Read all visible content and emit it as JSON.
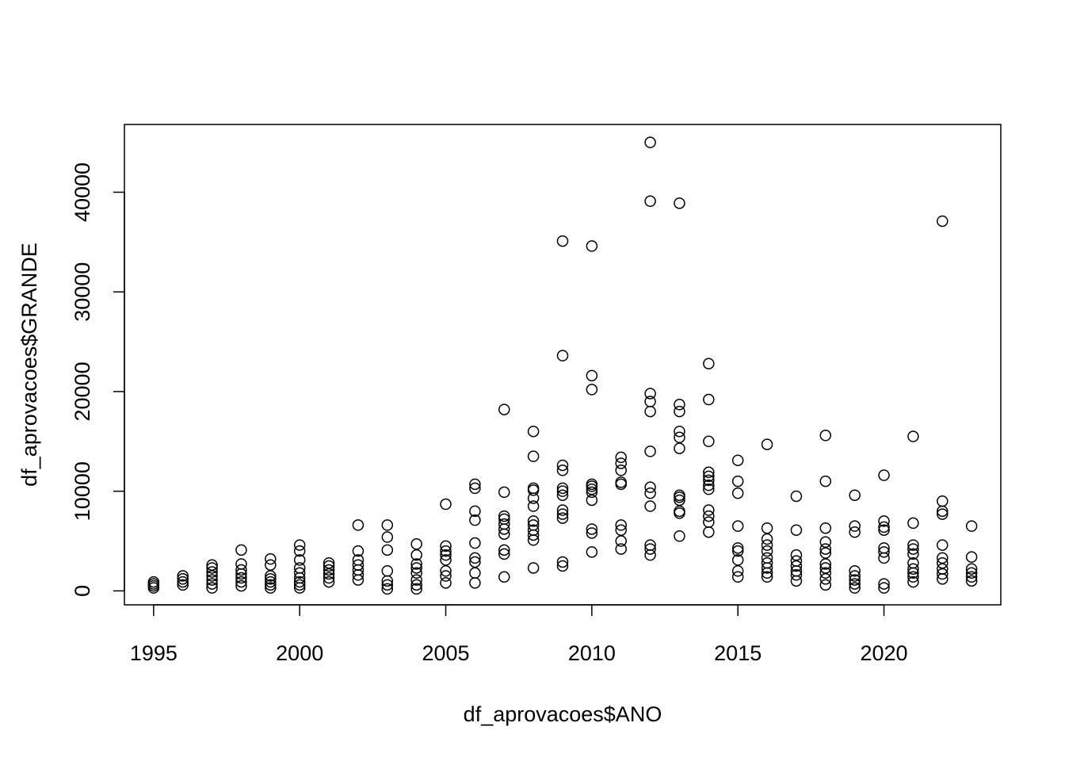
{
  "chart_data": {
    "type": "scatter",
    "title": "",
    "xlabel": "df_aprovacoes$ANO",
    "ylabel": "df_aprovacoes$GRANDE",
    "xlim": [
      1994,
      2024
    ],
    "ylim": [
      -1400,
      46800
    ],
    "x_ticks": [
      1995,
      2000,
      2005,
      2010,
      2015,
      2020
    ],
    "y_ticks": [
      0,
      10000,
      20000,
      30000,
      40000
    ],
    "x_tick_labels": [
      "1995",
      "2000",
      "2005",
      "2010",
      "2015",
      "2020"
    ],
    "y_tick_labels": [
      "0",
      "10000",
      "20000",
      "30000",
      "40000"
    ],
    "grid": false,
    "legend": "none",
    "marker": "open-circle",
    "colors": {
      "point_stroke": "#000000",
      "frame": "#000000",
      "background": "#ffffff"
    },
    "points": [
      [
        1995,
        300
      ],
      [
        1995,
        500
      ],
      [
        1995,
        700
      ],
      [
        1995,
        900
      ],
      [
        1996,
        600
      ],
      [
        1996,
        900
      ],
      [
        1996,
        1200
      ],
      [
        1996,
        1500
      ],
      [
        1997,
        300
      ],
      [
        1997,
        700
      ],
      [
        1997,
        1100
      ],
      [
        1997,
        1500
      ],
      [
        1997,
        1900
      ],
      [
        1997,
        2300
      ],
      [
        1997,
        2600
      ],
      [
        1998,
        500
      ],
      [
        1998,
        900
      ],
      [
        1998,
        1300
      ],
      [
        1998,
        1700
      ],
      [
        1998,
        2100
      ],
      [
        1998,
        2700
      ],
      [
        1998,
        4100
      ],
      [
        1999,
        300
      ],
      [
        1999,
        600
      ],
      [
        1999,
        900
      ],
      [
        1999,
        1200
      ],
      [
        1999,
        1500
      ],
      [
        1999,
        2600
      ],
      [
        1999,
        3200
      ],
      [
        2000,
        300
      ],
      [
        2000,
        600
      ],
      [
        2000,
        900
      ],
      [
        2000,
        1300
      ],
      [
        2000,
        1800
      ],
      [
        2000,
        2300
      ],
      [
        2000,
        3100
      ],
      [
        2000,
        4000
      ],
      [
        2000,
        4600
      ],
      [
        2001,
        900
      ],
      [
        2001,
        1300
      ],
      [
        2001,
        1700
      ],
      [
        2001,
        2100
      ],
      [
        2001,
        2500
      ],
      [
        2001,
        2800
      ],
      [
        2002,
        1100
      ],
      [
        2002,
        1600
      ],
      [
        2002,
        2100
      ],
      [
        2002,
        2600
      ],
      [
        2002,
        3100
      ],
      [
        2002,
        4000
      ],
      [
        2002,
        6600
      ],
      [
        2003,
        200
      ],
      [
        2003,
        600
      ],
      [
        2003,
        1000
      ],
      [
        2003,
        2000
      ],
      [
        2003,
        4100
      ],
      [
        2003,
        5400
      ],
      [
        2003,
        6600
      ],
      [
        2004,
        200
      ],
      [
        2004,
        600
      ],
      [
        2004,
        1100
      ],
      [
        2004,
        1800
      ],
      [
        2004,
        2300
      ],
      [
        2004,
        2700
      ],
      [
        2004,
        3600
      ],
      [
        2004,
        4700
      ],
      [
        2005,
        800
      ],
      [
        2005,
        1500
      ],
      [
        2005,
        2000
      ],
      [
        2005,
        3100
      ],
      [
        2005,
        3600
      ],
      [
        2005,
        4000
      ],
      [
        2005,
        4500
      ],
      [
        2005,
        8700
      ],
      [
        2006,
        800
      ],
      [
        2006,
        1800
      ],
      [
        2006,
        2900
      ],
      [
        2006,
        3300
      ],
      [
        2006,
        4800
      ],
      [
        2006,
        7100
      ],
      [
        2006,
        8000
      ],
      [
        2006,
        10300
      ],
      [
        2006,
        10700
      ],
      [
        2007,
        1400
      ],
      [
        2007,
        3700
      ],
      [
        2007,
        4100
      ],
      [
        2007,
        5700
      ],
      [
        2007,
        6200
      ],
      [
        2007,
        6700
      ],
      [
        2007,
        7200
      ],
      [
        2007,
        7500
      ],
      [
        2007,
        9900
      ],
      [
        2007,
        18200
      ],
      [
        2008,
        2300
      ],
      [
        2008,
        5100
      ],
      [
        2008,
        5600
      ],
      [
        2008,
        6100
      ],
      [
        2008,
        6600
      ],
      [
        2008,
        7000
      ],
      [
        2008,
        8500
      ],
      [
        2008,
        9300
      ],
      [
        2008,
        10100
      ],
      [
        2008,
        10300
      ],
      [
        2008,
        13500
      ],
      [
        2008,
        16000
      ],
      [
        2009,
        2500
      ],
      [
        2009,
        2900
      ],
      [
        2009,
        7300
      ],
      [
        2009,
        7700
      ],
      [
        2009,
        8100
      ],
      [
        2009,
        9600
      ],
      [
        2009,
        10000
      ],
      [
        2009,
        10300
      ],
      [
        2009,
        12100
      ],
      [
        2009,
        12600
      ],
      [
        2009,
        23600
      ],
      [
        2009,
        35100
      ],
      [
        2010,
        3900
      ],
      [
        2010,
        5800
      ],
      [
        2010,
        6200
      ],
      [
        2010,
        9100
      ],
      [
        2010,
        9900
      ],
      [
        2010,
        10200
      ],
      [
        2010,
        10500
      ],
      [
        2010,
        10700
      ],
      [
        2010,
        20200
      ],
      [
        2010,
        21600
      ],
      [
        2010,
        34600
      ],
      [
        2011,
        4200
      ],
      [
        2011,
        5000
      ],
      [
        2011,
        6100
      ],
      [
        2011,
        6600
      ],
      [
        2011,
        10700
      ],
      [
        2011,
        10900
      ],
      [
        2011,
        12100
      ],
      [
        2011,
        12800
      ],
      [
        2011,
        13400
      ],
      [
        2012,
        3600
      ],
      [
        2012,
        4200
      ],
      [
        2012,
        4600
      ],
      [
        2012,
        8500
      ],
      [
        2012,
        9800
      ],
      [
        2012,
        10400
      ],
      [
        2012,
        14000
      ],
      [
        2012,
        18000
      ],
      [
        2012,
        19000
      ],
      [
        2012,
        19800
      ],
      [
        2012,
        39100
      ],
      [
        2012,
        45000
      ],
      [
        2013,
        5500
      ],
      [
        2013,
        7800
      ],
      [
        2013,
        8000
      ],
      [
        2013,
        9100
      ],
      [
        2013,
        9400
      ],
      [
        2013,
        9600
      ],
      [
        2013,
        14300
      ],
      [
        2013,
        15400
      ],
      [
        2013,
        16000
      ],
      [
        2013,
        18000
      ],
      [
        2013,
        18700
      ],
      [
        2013,
        38900
      ],
      [
        2014,
        5900
      ],
      [
        2014,
        6900
      ],
      [
        2014,
        7500
      ],
      [
        2014,
        8100
      ],
      [
        2014,
        10200
      ],
      [
        2014,
        10600
      ],
      [
        2014,
        11100
      ],
      [
        2014,
        11500
      ],
      [
        2014,
        11900
      ],
      [
        2014,
        15000
      ],
      [
        2014,
        19200
      ],
      [
        2014,
        22800
      ],
      [
        2015,
        1400
      ],
      [
        2015,
        2000
      ],
      [
        2015,
        3100
      ],
      [
        2015,
        4000
      ],
      [
        2015,
        4300
      ],
      [
        2015,
        6500
      ],
      [
        2015,
        9800
      ],
      [
        2015,
        11000
      ],
      [
        2015,
        13100
      ],
      [
        2016,
        1400
      ],
      [
        2016,
        1800
      ],
      [
        2016,
        2300
      ],
      [
        2016,
        2800
      ],
      [
        2016,
        3300
      ],
      [
        2016,
        4000
      ],
      [
        2016,
        4600
      ],
      [
        2016,
        5200
      ],
      [
        2016,
        6300
      ],
      [
        2016,
        14700
      ],
      [
        2017,
        1000
      ],
      [
        2017,
        1600
      ],
      [
        2017,
        2000
      ],
      [
        2017,
        2500
      ],
      [
        2017,
        3000
      ],
      [
        2017,
        3600
      ],
      [
        2017,
        6100
      ],
      [
        2017,
        9500
      ],
      [
        2018,
        600
      ],
      [
        2018,
        1200
      ],
      [
        2018,
        1800
      ],
      [
        2018,
        2300
      ],
      [
        2018,
        2700
      ],
      [
        2018,
        3800
      ],
      [
        2018,
        4200
      ],
      [
        2018,
        4900
      ],
      [
        2018,
        6300
      ],
      [
        2018,
        11000
      ],
      [
        2018,
        15600
      ],
      [
        2019,
        300
      ],
      [
        2019,
        700
      ],
      [
        2019,
        1100
      ],
      [
        2019,
        1500
      ],
      [
        2019,
        2000
      ],
      [
        2019,
        5900
      ],
      [
        2019,
        6500
      ],
      [
        2019,
        9600
      ],
      [
        2020,
        300
      ],
      [
        2020,
        700
      ],
      [
        2020,
        3300
      ],
      [
        2020,
        3900
      ],
      [
        2020,
        4300
      ],
      [
        2020,
        6100
      ],
      [
        2020,
        6400
      ],
      [
        2020,
        7000
      ],
      [
        2020,
        11600
      ],
      [
        2021,
        900
      ],
      [
        2021,
        1400
      ],
      [
        2021,
        1800
      ],
      [
        2021,
        2200
      ],
      [
        2021,
        2800
      ],
      [
        2021,
        3700
      ],
      [
        2021,
        4200
      ],
      [
        2021,
        4600
      ],
      [
        2021,
        6800
      ],
      [
        2021,
        15500
      ],
      [
        2022,
        1200
      ],
      [
        2022,
        1700
      ],
      [
        2022,
        2200
      ],
      [
        2022,
        2800
      ],
      [
        2022,
        3300
      ],
      [
        2022,
        4600
      ],
      [
        2022,
        7700
      ],
      [
        2022,
        8000
      ],
      [
        2022,
        9000
      ],
      [
        2022,
        37100
      ],
      [
        2023,
        1000
      ],
      [
        2023,
        1400
      ],
      [
        2023,
        1800
      ],
      [
        2023,
        2200
      ],
      [
        2023,
        3400
      ],
      [
        2023,
        6500
      ]
    ]
  }
}
